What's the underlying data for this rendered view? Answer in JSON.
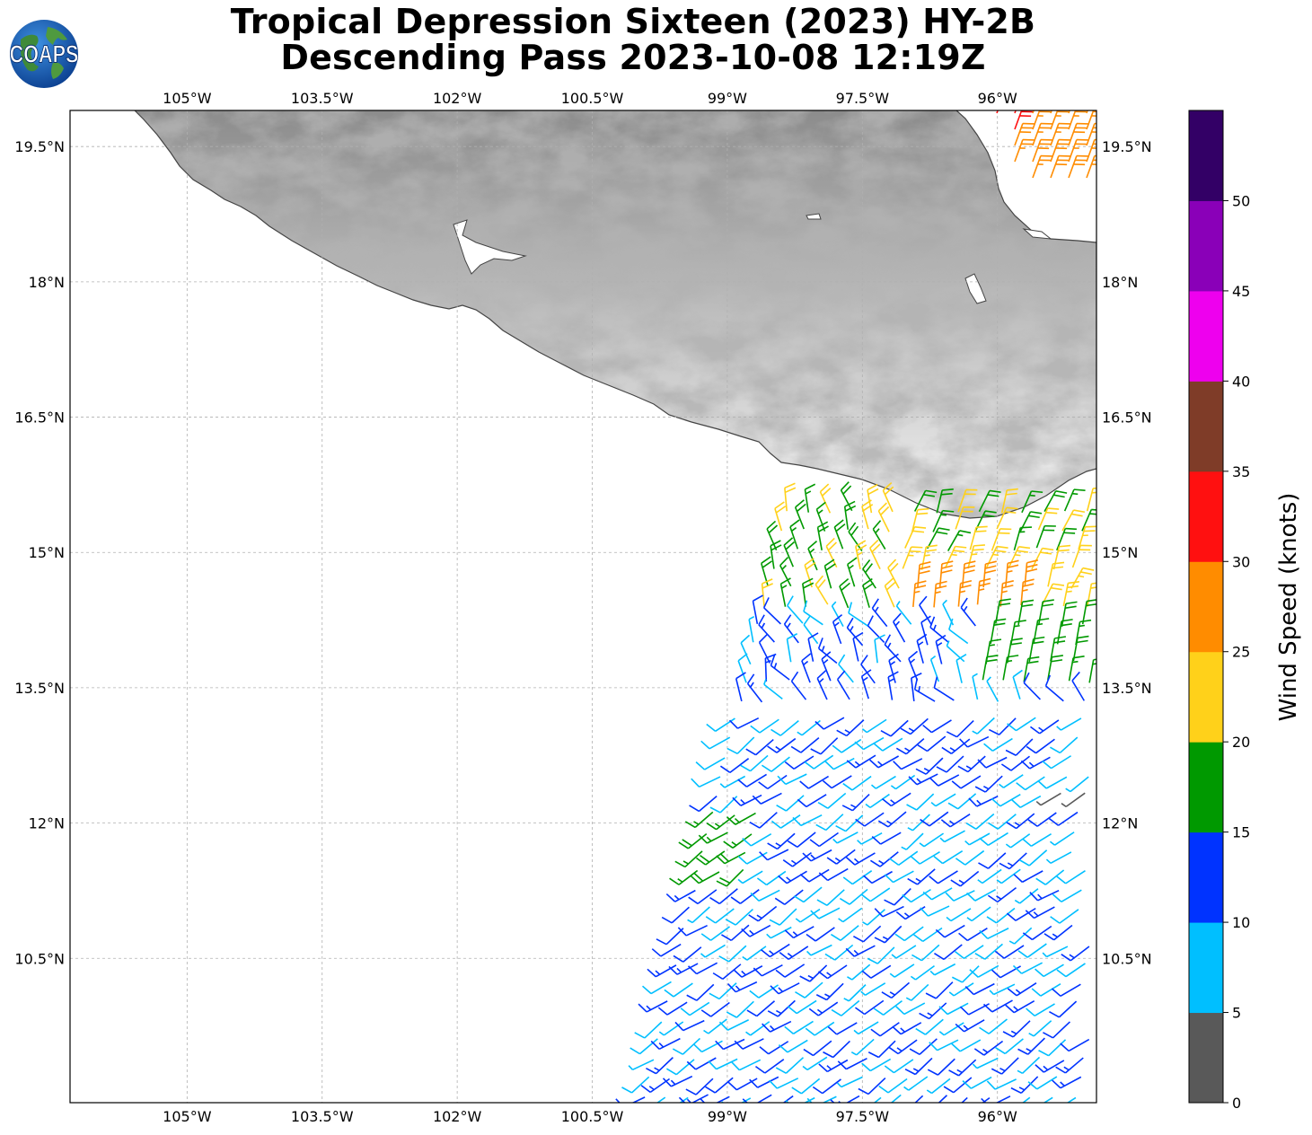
{
  "header": {
    "title_line1": "Tropical Depression Sixteen (2023) HY-2B",
    "title_line2": "Descending Pass 2023-10-08 12:19Z",
    "logo_text": "COAPS"
  },
  "map": {
    "lon_range": [
      -106.3,
      -94.9
    ],
    "lat_range": [
      8.9,
      19.9
    ],
    "lon_ticks": [
      "105°W",
      "103.5°W",
      "102°W",
      "100.5°W",
      "99°W",
      "97.5°W",
      "96°W"
    ],
    "lat_ticks": [
      "19.5°N",
      "18°N",
      "16.5°N",
      "15°N",
      "13.5°N",
      "12°N",
      "10.5°N"
    ],
    "lon_tick_values": [
      -105,
      -103.5,
      -102,
      -100.5,
      -99,
      -97.5,
      -96
    ],
    "lat_tick_values": [
      19.5,
      18,
      16.5,
      15,
      13.5,
      12,
      10.5
    ],
    "gridlines": true,
    "land_shading": "grayscale terrain"
  },
  "colorbar": {
    "label": "Wind Speed (knots)",
    "ticks": [
      "0",
      "5",
      "10",
      "15",
      "20",
      "25",
      "30",
      "35",
      "40",
      "45",
      "50"
    ],
    "bins": [
      {
        "min": 0,
        "max": 5,
        "color": "#595959"
      },
      {
        "min": 5,
        "max": 10,
        "color": "#00bfff"
      },
      {
        "min": 10,
        "max": 15,
        "color": "#0033ff"
      },
      {
        "min": 15,
        "max": 20,
        "color": "#009900"
      },
      {
        "min": 20,
        "max": 25,
        "color": "#ffd11a"
      },
      {
        "min": 25,
        "max": 30,
        "color": "#ff8c00"
      },
      {
        "min": 30,
        "max": 35,
        "color": "#ff1010"
      },
      {
        "min": 35,
        "max": 40,
        "color": "#7f3c28"
      },
      {
        "min": 40,
        "max": 45,
        "color": "#ee00ee"
      },
      {
        "min": 45,
        "max": 50,
        "color": "#8a00b8"
      },
      {
        "min": 50,
        "max": 55,
        "color": "#330066"
      }
    ]
  },
  "wind_swath": {
    "type": "wind barbs",
    "regions": [
      {
        "area": "southern swath",
        "speed_range_kt": [
          5,
          15
        ],
        "direction": "southwesterly"
      },
      {
        "area": "near 98W 14N",
        "speed_range_kt": [
          5,
          15
        ],
        "direction": "variable"
      },
      {
        "area": "off coast 97-95.5W 14.5-15.5N",
        "speed_range_kt": [
          15,
          30
        ],
        "direction": "northerly"
      },
      {
        "area": "west edge 99.5W 12N",
        "speed_range_kt": [
          15,
          20
        ],
        "direction": "southwesterly"
      },
      {
        "area": "Gulf of Mexico 95.5W 19.5N",
        "speed_range_kt": [
          25,
          35
        ],
        "direction": "northerly"
      }
    ]
  }
}
